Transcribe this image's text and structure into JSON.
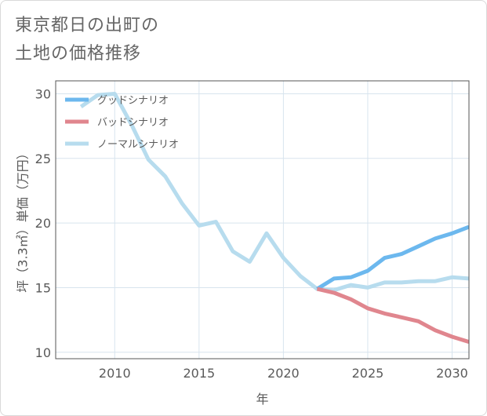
{
  "title_lines": [
    "東京都日の出町の",
    "土地の価格推移"
  ],
  "chart_data": {
    "type": "line",
    "xlabel": "年",
    "ylabel": "坪（3.3㎡）単価（万円）",
    "xlim": [
      2006.5,
      2031
    ],
    "ylim": [
      9.5,
      31
    ],
    "x_ticks": [
      2010,
      2015,
      2020,
      2025,
      2030
    ],
    "y_ticks": [
      10,
      15,
      20,
      25,
      30
    ],
    "grid": true,
    "legend_position": "top-left",
    "series": [
      {
        "name": "グッドシナリオ",
        "color": "#6cb8ee",
        "points": [
          [
            2022,
            14.9
          ],
          [
            2023,
            15.7
          ],
          [
            2024,
            15.8
          ],
          [
            2025,
            16.3
          ],
          [
            2026,
            17.3
          ],
          [
            2027,
            17.6
          ],
          [
            2028,
            18.2
          ],
          [
            2029,
            18.8
          ],
          [
            2030,
            19.2
          ],
          [
            2031,
            19.7
          ]
        ]
      },
      {
        "name": "バッドシナリオ",
        "color": "#e0868e",
        "points": [
          [
            2022,
            14.9
          ],
          [
            2023,
            14.6
          ],
          [
            2024,
            14.1
          ],
          [
            2025,
            13.4
          ],
          [
            2026,
            13.0
          ],
          [
            2027,
            12.7
          ],
          [
            2028,
            12.4
          ],
          [
            2029,
            11.7
          ],
          [
            2030,
            11.2
          ],
          [
            2031,
            10.8
          ]
        ]
      },
      {
        "name": "ノーマルシナリオ",
        "color": "#b7dcee",
        "points": [
          [
            2008,
            29.0
          ],
          [
            2009,
            29.9
          ],
          [
            2010,
            30.0
          ],
          [
            2011,
            27.6
          ],
          [
            2012,
            24.9
          ],
          [
            2013,
            23.6
          ],
          [
            2014,
            21.5
          ],
          [
            2015,
            19.8
          ],
          [
            2016,
            20.1
          ],
          [
            2017,
            17.8
          ],
          [
            2018,
            17.0
          ],
          [
            2019,
            19.2
          ],
          [
            2020,
            17.3
          ],
          [
            2021,
            15.9
          ],
          [
            2022,
            14.9
          ],
          [
            2023,
            14.8
          ],
          [
            2024,
            15.2
          ],
          [
            2025,
            15.0
          ],
          [
            2026,
            15.4
          ],
          [
            2027,
            15.4
          ],
          [
            2028,
            15.5
          ],
          [
            2029,
            15.5
          ],
          [
            2030,
            15.8
          ],
          [
            2031,
            15.7
          ]
        ]
      }
    ]
  },
  "colors": {
    "grid": "#d8e4ee",
    "axis_border": "#555555",
    "text": "#5a5a5a"
  }
}
